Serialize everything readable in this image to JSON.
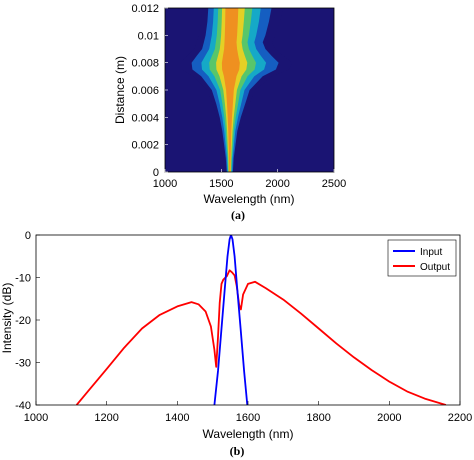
{
  "chart_data": [
    {
      "panel_label": "(a)",
      "type": "heatmap",
      "xlabel": "Wavelength (nm)",
      "ylabel": "Distance (m)",
      "xlim": [
        1000,
        2500
      ],
      "ylim": [
        0,
        0.012
      ],
      "xticks": [
        "1000",
        "1500",
        "2000",
        "2500"
      ],
      "yticks": [
        "0",
        "0.002",
        "0.004",
        "0.006",
        "0.008",
        "0.01",
        "0.012"
      ],
      "colormap": [
        "#1a1473",
        "#1565c8",
        "#16b0c8",
        "#5ec962",
        "#f0d020",
        "#f08a20"
      ],
      "background_color": "#1a1473",
      "envelope": [
        {
          "z": 0.0,
          "left": 1540,
          "right": 1610
        },
        {
          "z": 0.001,
          "left": 1530,
          "right": 1620
        },
        {
          "z": 0.002,
          "left": 1510,
          "right": 1640
        },
        {
          "z": 0.003,
          "left": 1490,
          "right": 1660
        },
        {
          "z": 0.004,
          "left": 1460,
          "right": 1700
        },
        {
          "z": 0.005,
          "left": 1420,
          "right": 1750
        },
        {
          "z": 0.006,
          "left": 1370,
          "right": 1800
        },
        {
          "z": 0.007,
          "left": 1250,
          "right": 1950
        },
        {
          "z": 0.0075,
          "left": 1150,
          "right": 2100
        },
        {
          "z": 0.008,
          "left": 1140,
          "right": 2130
        },
        {
          "z": 0.0085,
          "left": 1200,
          "right": 2050
        },
        {
          "z": 0.009,
          "left": 1260,
          "right": 1980
        },
        {
          "z": 0.0095,
          "left": 1280,
          "right": 1950
        },
        {
          "z": 0.01,
          "left": 1300,
          "right": 1980
        },
        {
          "z": 0.011,
          "left": 1320,
          "right": 2020
        },
        {
          "z": 0.012,
          "left": 1330,
          "right": 2050
        }
      ]
    },
    {
      "panel_label": "(b)",
      "type": "line",
      "xlabel": "Wavelength (nm)",
      "ylabel": "Intensity (dB)",
      "xlim": [
        1000,
        2200
      ],
      "ylim": [
        -40,
        0
      ],
      "xticks": [
        "1000",
        "1200",
        "1400",
        "1600",
        "1800",
        "2000",
        "2200"
      ],
      "yticks": [
        "0",
        "-10",
        "-20",
        "-30",
        "-40"
      ],
      "legend": "top-right",
      "series": [
        {
          "name": "Input",
          "color": "#0000ff",
          "points": [
            [
              1505,
              -40
            ],
            [
              1515,
              -32
            ],
            [
              1525,
              -22
            ],
            [
              1535,
              -12
            ],
            [
              1542,
              -5
            ],
            [
              1548,
              -1
            ],
            [
              1552,
              0
            ],
            [
              1556,
              -1
            ],
            [
              1562,
              -5
            ],
            [
              1569,
              -12
            ],
            [
              1579,
              -22
            ],
            [
              1589,
              -32
            ],
            [
              1598,
              -40
            ]
          ]
        },
        {
          "name": "Output",
          "color": "#ff0000",
          "points": [
            [
              1115,
              -40
            ],
            [
              1150,
              -36.5
            ],
            [
              1200,
              -31.5
            ],
            [
              1250,
              -26.5
            ],
            [
              1300,
              -22
            ],
            [
              1350,
              -18.8
            ],
            [
              1400,
              -16.8
            ],
            [
              1440,
              -15.8
            ],
            [
              1460,
              -16.3
            ],
            [
              1480,
              -18
            ],
            [
              1495,
              -21.5
            ],
            [
              1505,
              -27
            ],
            [
              1510,
              -31
            ],
            [
              1515,
              -24
            ],
            [
              1520,
              -16
            ],
            [
              1525,
              -11.5
            ],
            [
              1530,
              -10.5
            ],
            [
              1540,
              -9.7
            ],
            [
              1548,
              -8.3
            ],
            [
              1555,
              -8.8
            ],
            [
              1562,
              -9.5
            ],
            [
              1568,
              -12
            ],
            [
              1575,
              -16.5
            ],
            [
              1580,
              -17.5
            ],
            [
              1586,
              -14
            ],
            [
              1600,
              -11.5
            ],
            [
              1620,
              -11
            ],
            [
              1650,
              -12.5
            ],
            [
              1700,
              -15.2
            ],
            [
              1750,
              -18.5
            ],
            [
              1800,
              -22
            ],
            [
              1850,
              -25.5
            ],
            [
              1900,
              -28.8
            ],
            [
              1950,
              -31.8
            ],
            [
              2000,
              -34.5
            ],
            [
              2050,
              -36.8
            ],
            [
              2100,
              -38.5
            ],
            [
              2160,
              -40
            ]
          ]
        }
      ]
    }
  ]
}
